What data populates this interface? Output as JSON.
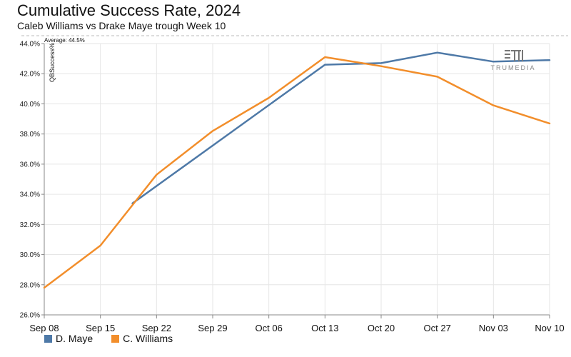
{
  "header": {
    "title": "Cumulative Success Rate, 2024",
    "subtitle": "Caleb Williams vs Drake Maye trough Week 10"
  },
  "logo": {
    "text": "TRUMEDIA",
    "icon": "trumedia-logo-icon"
  },
  "chart_data": {
    "type": "line",
    "title": "Cumulative Success Rate, 2024",
    "subtitle": "Caleb Williams vs Drake Maye trough Week 10",
    "xlabel": "",
    "ylabel": "QBSuccess%",
    "ylim": [
      26.0,
      44.0
    ],
    "y_ticks": [
      "26.0%",
      "28.0%",
      "30.0%",
      "32.0%",
      "34.0%",
      "36.0%",
      "38.0%",
      "40.0%",
      "42.0%",
      "44.0%"
    ],
    "x_ticks": [
      "Sep 08",
      "Sep 15",
      "Sep 22",
      "Sep 29",
      "Oct 06",
      "Oct 13",
      "Oct 20",
      "Oct 27",
      "Nov 03",
      "Nov 10"
    ],
    "x_range": [
      "2024-09-08",
      "2024-11-10"
    ],
    "reference_line": {
      "label": "Average: 44.5%",
      "value": 44.5
    },
    "grid": true,
    "legend_position": "bottom-left",
    "series": [
      {
        "name": "D. Maye",
        "color": "#4e79a7",
        "points": [
          {
            "x": "2024-09-19",
            "y": 33.4
          },
          {
            "x": "2024-10-13",
            "y": 42.6
          },
          {
            "x": "2024-10-20",
            "y": 42.7
          },
          {
            "x": "2024-10-27",
            "y": 43.4
          },
          {
            "x": "2024-11-03",
            "y": 42.8
          },
          {
            "x": "2024-11-10",
            "y": 42.9
          }
        ]
      },
      {
        "name": "C. Williams",
        "color": "#f28e2b",
        "points": [
          {
            "x": "2024-09-08",
            "y": 27.8
          },
          {
            "x": "2024-09-15",
            "y": 30.6
          },
          {
            "x": "2024-09-22",
            "y": 35.3
          },
          {
            "x": "2024-09-29",
            "y": 38.2
          },
          {
            "x": "2024-10-06",
            "y": 40.4
          },
          {
            "x": "2024-10-13",
            "y": 43.1
          },
          {
            "x": "2024-10-20",
            "y": 42.5
          },
          {
            "x": "2024-10-27",
            "y": 41.8
          },
          {
            "x": "2024-11-03",
            "y": 39.9
          },
          {
            "x": "2024-11-10",
            "y": 38.7
          }
        ]
      }
    ]
  }
}
